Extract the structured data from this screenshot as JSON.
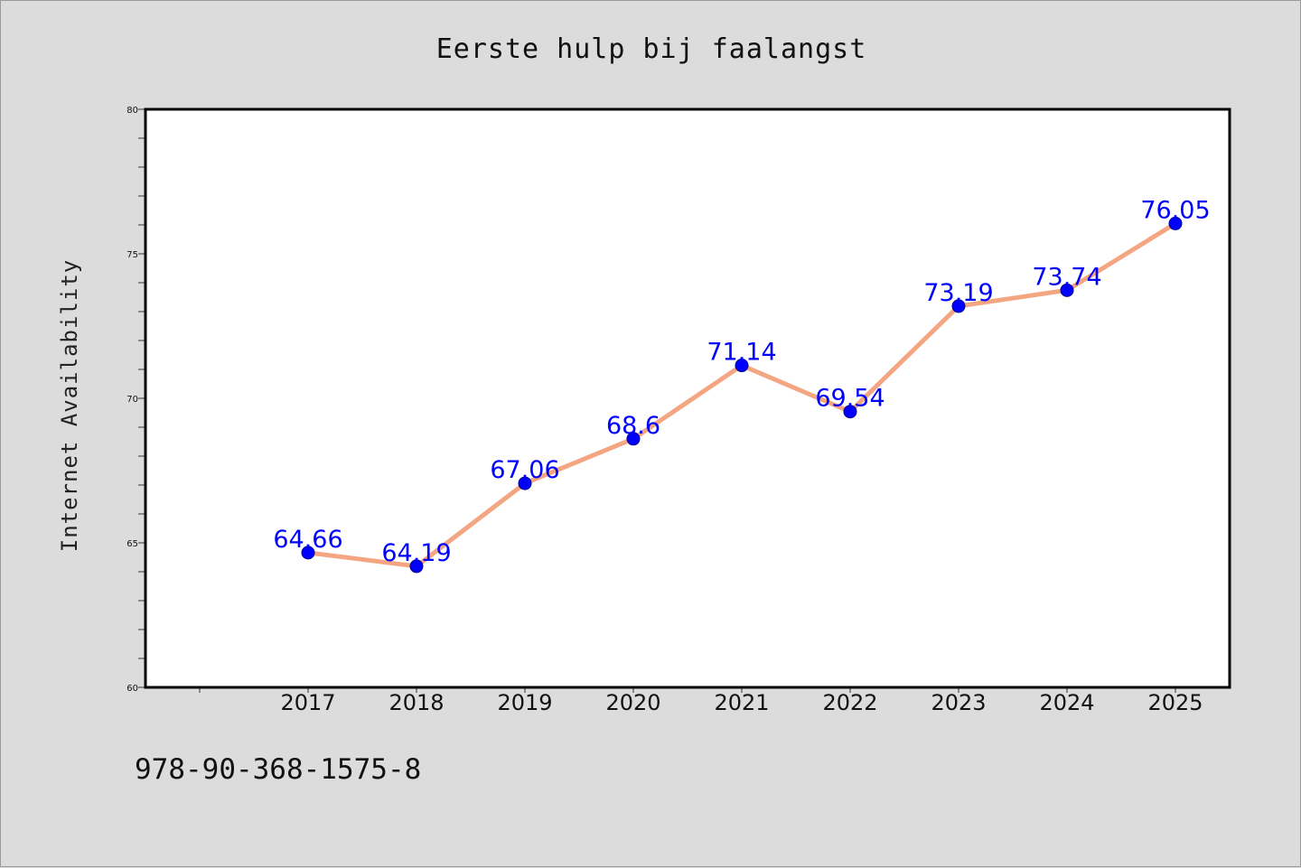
{
  "chart_data": {
    "type": "line",
    "title": "Eerste hulp bij faalangst",
    "xlabel": "",
    "ylabel": "Internet Availability",
    "categories": [
      "2017",
      "2018",
      "2019",
      "2020",
      "2021",
      "2022",
      "2023",
      "2024",
      "2025"
    ],
    "series": [
      {
        "values": [
          64.66,
          64.19,
          67.06,
          68.6,
          71.14,
          69.54,
          73.19,
          73.74,
          76.05
        ],
        "labels": [
          "64.66",
          "64.19",
          "67.06",
          "68.6",
          "71.14",
          "69.54",
          "73.19",
          "73.74",
          "76.05"
        ]
      }
    ],
    "ylim": [
      60,
      80
    ],
    "yticks": [
      "60",
      "65",
      "70",
      "75",
      "80"
    ],
    "grid": false,
    "legend": "none",
    "colors": {
      "line": "#f4a582",
      "marker": "#0000ff",
      "marker_edge": "#00008b",
      "data_label": "#0000ff",
      "background": "#dcdcdc",
      "plot_background": "#ffffff"
    }
  },
  "footer": {
    "isbn": "978-90-368-1575-8"
  }
}
